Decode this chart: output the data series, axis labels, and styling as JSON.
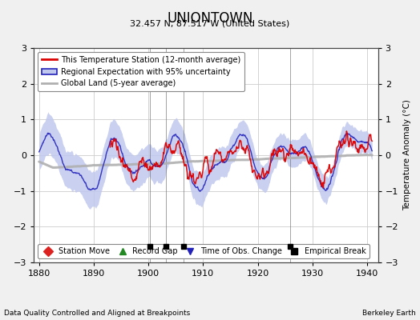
{
  "title": "UNIONTOWN",
  "subtitle": "32.457 N, 87.517 W (United States)",
  "xlabel_left": "Data Quality Controlled and Aligned at Breakpoints",
  "xlabel_right": "Berkeley Earth",
  "ylabel": "Temperature Anomaly (°C)",
  "xlim": [
    1879,
    1942
  ],
  "ylim": [
    -3,
    3
  ],
  "yticks": [
    -3,
    -2,
    -1,
    0,
    1,
    2,
    3
  ],
  "xticks": [
    1880,
    1890,
    1900,
    1910,
    1920,
    1930,
    1940
  ],
  "bg_color": "#f0f0f0",
  "plot_bg_color": "#ffffff",
  "red_color": "#dd0000",
  "blue_color": "#2222bb",
  "blue_fill_color": "#c0c8ee",
  "gray_color": "#b0b0b0",
  "empirical_breaks": [
    1900.3,
    1903.2,
    1906.5,
    1926.0
  ],
  "seed": 137
}
